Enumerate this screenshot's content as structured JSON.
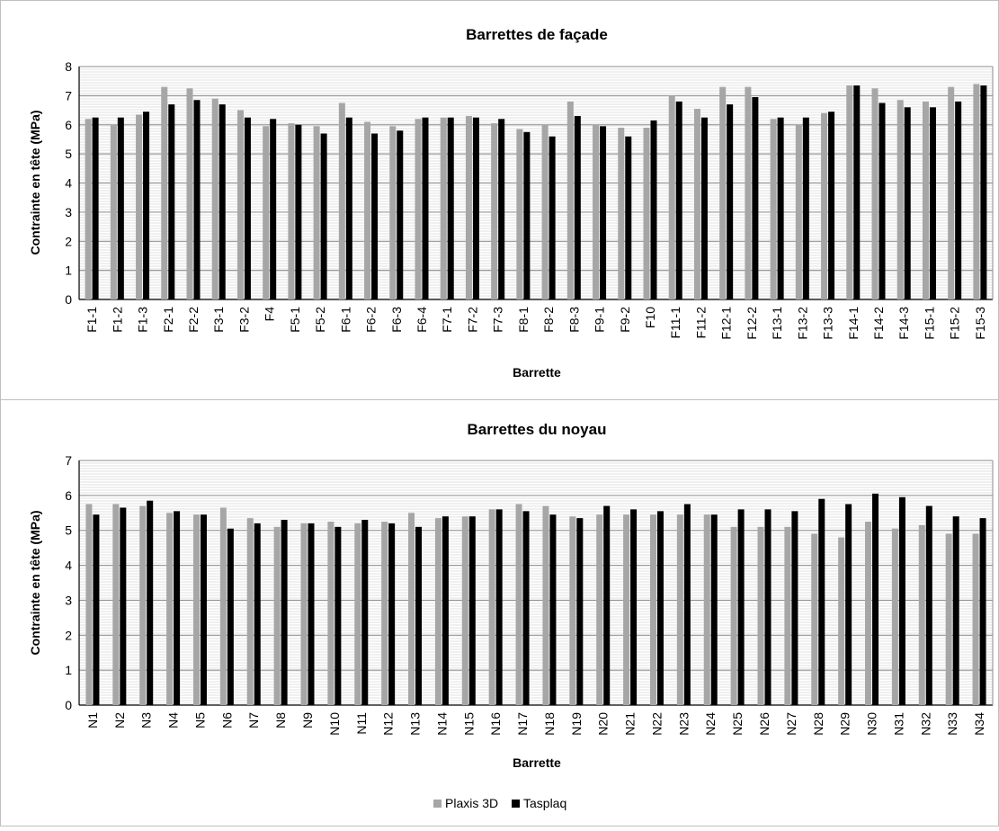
{
  "legend": {
    "series": [
      "Plaxis 3D",
      "Tasplaq"
    ]
  },
  "colors": {
    "plaxis": "#a6a6a6",
    "tasplaq": "#000000",
    "grid": "#d0d0d0"
  },
  "chart_data": [
    {
      "type": "bar",
      "title": "Barrettes de façade",
      "xlabel": "Barrette",
      "ylabel": "Contrainte en tête (MPa)",
      "ylim": [
        0,
        8
      ],
      "yticks": [
        0,
        1,
        2,
        3,
        4,
        5,
        6,
        7,
        8
      ],
      "grid": "horizontal",
      "categories": [
        "F1-1",
        "F1-2",
        "F1-3",
        "F2-1",
        "F2-2",
        "F3-1",
        "F3-2",
        "F4",
        "F5-1",
        "F5-2",
        "F6-1",
        "F6-2",
        "F6-3",
        "F6-4",
        "F7-1",
        "F7-2",
        "F7-3",
        "F8-1",
        "F8-2",
        "F8-3",
        "F9-1",
        "F9-2",
        "F10",
        "F11-1",
        "F11-2",
        "F12-1",
        "F12-2",
        "F13-1",
        "F13-2",
        "F13-3",
        "F14-1",
        "F14-2",
        "F14-3",
        "F15-1",
        "F15-2",
        "F15-3"
      ],
      "series": [
        {
          "name": "Plaxis 3D",
          "values": [
            6.2,
            6.0,
            6.35,
            7.3,
            7.25,
            6.9,
            6.5,
            5.95,
            6.05,
            5.95,
            6.75,
            6.1,
            5.95,
            6.2,
            6.25,
            6.3,
            6.05,
            5.85,
            6.0,
            6.8,
            6.0,
            5.9,
            5.9,
            7.0,
            6.55,
            7.3,
            7.3,
            6.2,
            6.0,
            6.4,
            7.35,
            7.25,
            6.85,
            6.8,
            7.3,
            7.4
          ]
        },
        {
          "name": "Tasplaq",
          "values": [
            6.25,
            6.25,
            6.45,
            6.7,
            6.85,
            6.7,
            6.25,
            6.2,
            6.0,
            5.7,
            6.25,
            5.7,
            5.8,
            6.25,
            6.25,
            6.25,
            6.2,
            5.75,
            5.6,
            6.3,
            5.95,
            5.6,
            6.15,
            6.8,
            6.25,
            6.7,
            6.95,
            6.25,
            6.25,
            6.45,
            7.35,
            6.75,
            6.6,
            6.6,
            6.8,
            7.35
          ]
        }
      ]
    },
    {
      "type": "bar",
      "title": "Barrettes du noyau",
      "xlabel": "Barrette",
      "ylabel": "Contrainte en tête (MPa)",
      "ylim": [
        0,
        7
      ],
      "yticks": [
        0,
        1,
        2,
        3,
        4,
        5,
        6,
        7
      ],
      "grid": "horizontal",
      "legend_position": "bottom",
      "categories": [
        "N1",
        "N2",
        "N3",
        "N4",
        "N5",
        "N6",
        "N7",
        "N8",
        "N9",
        "N10",
        "N11",
        "N12",
        "N13",
        "N14",
        "N15",
        "N16",
        "N17",
        "N18",
        "N19",
        "N20",
        "N21",
        "N22",
        "N23",
        "N24",
        "N25",
        "N26",
        "N27",
        "N28",
        "N29",
        "N30",
        "N31",
        "N32",
        "N33",
        "N34"
      ],
      "series": [
        {
          "name": "Plaxis 3D",
          "values": [
            5.75,
            5.75,
            5.7,
            5.5,
            5.45,
            5.65,
            5.35,
            5.1,
            5.2,
            5.25,
            5.2,
            5.25,
            5.5,
            5.35,
            5.4,
            5.6,
            5.75,
            5.7,
            5.4,
            5.45,
            5.45,
            5.45,
            5.45,
            5.45,
            5.1,
            5.1,
            5.1,
            4.9,
            4.8,
            5.25,
            5.05,
            5.15,
            4.9,
            4.9
          ]
        },
        {
          "name": "Tasplaq",
          "values": [
            5.45,
            5.65,
            5.85,
            5.55,
            5.45,
            5.05,
            5.2,
            5.3,
            5.2,
            5.1,
            5.3,
            5.2,
            5.1,
            5.4,
            5.4,
            5.6,
            5.55,
            5.45,
            5.35,
            5.7,
            5.6,
            5.55,
            5.75,
            5.45,
            5.6,
            5.6,
            5.55,
            5.9,
            5.75,
            6.05,
            5.95,
            5.7,
            5.4,
            5.35
          ]
        }
      ]
    }
  ]
}
